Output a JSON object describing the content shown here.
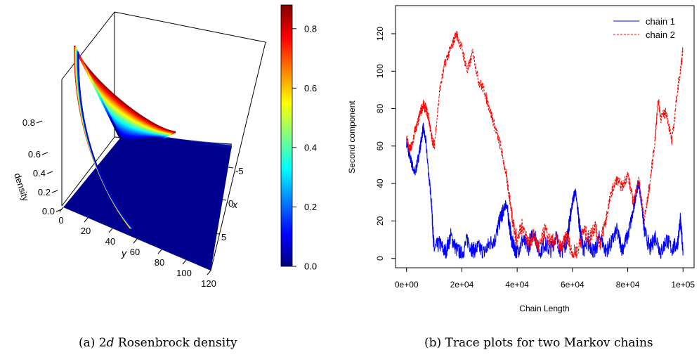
{
  "chart_data": [
    {
      "type": "surface",
      "panel_id": "a",
      "caption_prefix": "(a) 2",
      "caption_italic": "d",
      "caption_suffix": " Rosenbrock density",
      "zlabel": "density",
      "xlabel": "x",
      "ylabel": "y",
      "z_ticks": [
        "0.0",
        "0.2",
        "0.4",
        "0.6",
        "0.8"
      ],
      "y_ticks": [
        "0",
        "20",
        "40",
        "60",
        "80",
        "100",
        "120"
      ],
      "x_ticks": [
        "-5",
        "0",
        "5"
      ],
      "colorbar_ticks": [
        "0.0",
        "0.2",
        "0.4",
        "0.6",
        "0.8"
      ],
      "colorbar_range": [
        0,
        0.88
      ],
      "colormap": [
        "#00007f",
        "#0000ff",
        "#00ffff",
        "#ffff00",
        "#ff0000",
        "#7f0000"
      ]
    },
    {
      "type": "line",
      "panel_id": "b",
      "caption": "(b) Trace plots for two Markov chains",
      "xlabel": "Chain Length",
      "ylabel": "Second component",
      "x_ticks": [
        "0e+00",
        "2e+04",
        "4e+04",
        "6e+04",
        "8e+04",
        "1e+05"
      ],
      "x_tick_values": [
        0,
        20000,
        40000,
        60000,
        80000,
        100000
      ],
      "y_ticks": [
        "0",
        "20",
        "40",
        "60",
        "80",
        "100",
        "120"
      ],
      "y_tick_values": [
        0,
        20,
        40,
        60,
        80,
        100,
        120
      ],
      "xlim": [
        -4000,
        104000
      ],
      "ylim": [
        -5,
        135
      ],
      "legend_position": "top-right",
      "series": [
        {
          "name": "chain 1",
          "color": "#0000ff",
          "dash": "solid",
          "x": [
            0,
            1000,
            2000,
            3000,
            4000,
            5000,
            6000,
            7000,
            8000,
            9000,
            9500,
            10000,
            12000,
            14000,
            16000,
            18000,
            20000,
            22000,
            24000,
            26000,
            28000,
            30000,
            32000,
            34000,
            35000,
            36000,
            37000,
            38000,
            39000,
            40000,
            42000,
            44000,
            46000,
            48000,
            50000,
            52000,
            54000,
            56000,
            58000,
            59000,
            60000,
            61000,
            62000,
            63000,
            64000,
            66000,
            68000,
            70000,
            72000,
            74000,
            76000,
            78000,
            80000,
            82000,
            83000,
            84000,
            85000,
            86000,
            88000,
            90000,
            92000,
            94000,
            96000,
            98000,
            99000,
            100000
          ],
          "y": [
            62,
            55,
            50,
            45,
            52,
            60,
            70,
            62,
            45,
            30,
            15,
            5,
            8,
            3,
            12,
            5,
            2,
            10,
            4,
            6,
            3,
            8,
            10,
            22,
            25,
            30,
            20,
            10,
            5,
            3,
            10,
            5,
            15,
            3,
            8,
            4,
            12,
            3,
            10,
            20,
            30,
            36,
            25,
            12,
            5,
            8,
            3,
            12,
            4,
            8,
            15,
            5,
            12,
            25,
            35,
            40,
            30,
            15,
            5,
            12,
            3,
            10,
            5,
            8,
            20,
            5
          ]
        },
        {
          "name": "chain 2",
          "color": "#ff0000",
          "dash": "dashed",
          "x": [
            0,
            1000,
            2000,
            3000,
            4000,
            5000,
            6000,
            7000,
            8000,
            9000,
            10000,
            12000,
            14000,
            16000,
            18000,
            20000,
            22000,
            24000,
            26000,
            28000,
            30000,
            32000,
            34000,
            36000,
            37000,
            38000,
            39000,
            40000,
            42000,
            44000,
            46000,
            48000,
            50000,
            52000,
            54000,
            56000,
            58000,
            60000,
            62000,
            64000,
            66000,
            68000,
            70000,
            72000,
            74000,
            76000,
            78000,
            80000,
            82000,
            84000,
            86000,
            88000,
            90000,
            91000,
            92000,
            94000,
            96000,
            98000,
            99000,
            100000
          ],
          "y": [
            65,
            58,
            60,
            68,
            72,
            78,
            82,
            80,
            75,
            65,
            60,
            90,
            105,
            112,
            120,
            112,
            100,
            110,
            95,
            90,
            80,
            70,
            60,
            45,
            35,
            25,
            15,
            10,
            18,
            8,
            12,
            5,
            15,
            8,
            10,
            5,
            12,
            2,
            5,
            15,
            10,
            18,
            8,
            20,
            35,
            42,
            38,
            45,
            30,
            42,
            20,
            40,
            65,
            85,
            75,
            78,
            62,
            90,
            100,
            112
          ]
        }
      ]
    }
  ]
}
